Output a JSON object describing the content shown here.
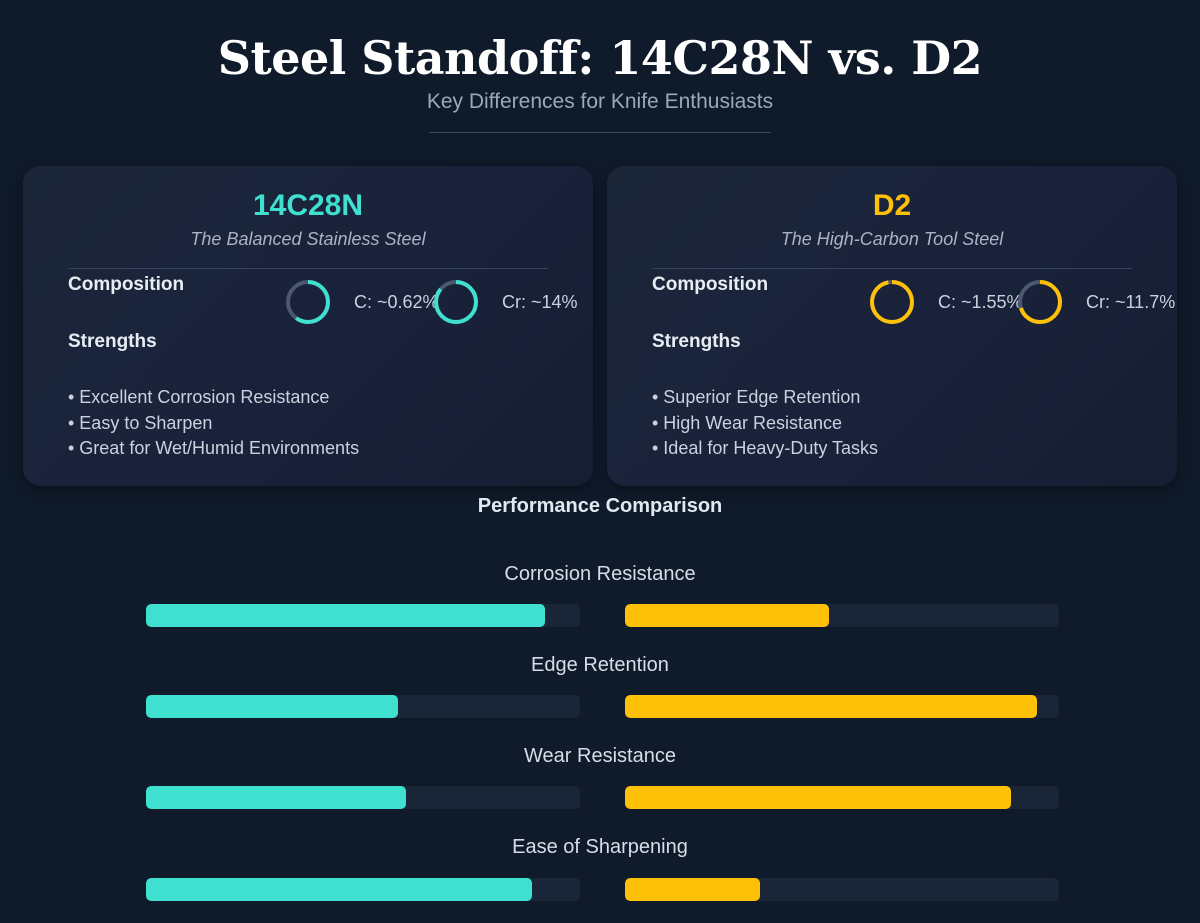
{
  "header": {
    "title": "Steel Standoff: 14C28N vs. D2",
    "subtitle": "Key Differences for Knife Enthusiasts"
  },
  "colors": {
    "background": "#0f1a2a",
    "steel_a": "#40e0d0",
    "steel_b": "#ffc107",
    "donut_track": "#4a5870",
    "bar_track": "#1b2538"
  },
  "cards": [
    {
      "name": "14C28N",
      "tagline": "The Balanced Stainless Steel",
      "composition_label": "Composition",
      "strengths_label": "Strengths",
      "composition": [
        {
          "label": "C: ~0.62%",
          "percent": 60
        },
        {
          "label": "Cr: ~14%",
          "percent": 86
        }
      ],
      "strengths": [
        "• Excellent Corrosion Resistance",
        "• Easy to Sharpen",
        "• Great for Wet/Humid Environments"
      ]
    },
    {
      "name": "D2",
      "tagline": "The High-Carbon Tool Steel",
      "composition_label": "Composition",
      "strengths_label": "Strengths",
      "composition": [
        {
          "label": "C: ~1.55%",
          "percent": 97
        },
        {
          "label": "Cr: ~11.7%",
          "percent": 70
        }
      ],
      "strengths": [
        "• Superior Edge Retention",
        "• High Wear Resistance",
        "• Ideal for Heavy-Duty Tasks"
      ]
    }
  ],
  "performance": {
    "title": "Performance Comparison",
    "metrics": [
      {
        "label": "Corrosion Resistance",
        "a": 92,
        "b": 47
      },
      {
        "label": "Edge Retention",
        "a": 58,
        "b": 95
      },
      {
        "label": "Wear Resistance",
        "a": 60,
        "b": 89
      },
      {
        "label": "Ease of Sharpening",
        "a": 89,
        "b": 31
      }
    ]
  },
  "chart_data": {
    "type": "bar",
    "title": "Performance Comparison",
    "categories": [
      "Corrosion Resistance",
      "Edge Retention",
      "Wear Resistance",
      "Ease of Sharpening"
    ],
    "series": [
      {
        "name": "14C28N",
        "values": [
          92,
          58,
          60,
          89
        ]
      },
      {
        "name": "D2",
        "values": [
          47,
          95,
          89,
          31
        ]
      }
    ],
    "ylim": [
      0,
      100
    ]
  }
}
